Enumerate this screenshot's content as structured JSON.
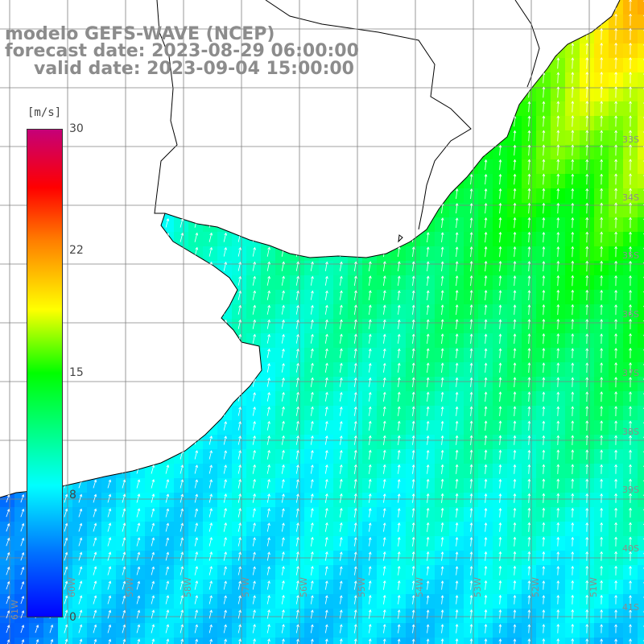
{
  "header": {
    "line1": "modelo GEFS-WAVE (NCEP)",
    "line2": "forecast date: 2023-08-29 06:00:00",
    "line3": "valid date: 2023-09-04 15:00:00"
  },
  "colorbar": {
    "unit": "[m/s]",
    "min": 0,
    "max": 30,
    "ticks": [
      "30",
      "22",
      "15",
      "8",
      "0"
    ],
    "tick_values": [
      30,
      22,
      15,
      8,
      0
    ]
  },
  "lat_labels": [
    "33S",
    "34S",
    "35S",
    "36S",
    "37S",
    "38S",
    "39S",
    "40S",
    "41S"
  ],
  "lon_labels": [
    "61W",
    "60W",
    "59W",
    "58W",
    "57W",
    "56W",
    "55W",
    "54W",
    "53W",
    "52W",
    "51W"
  ],
  "colors": {
    "land": "#ffffff",
    "coastline": "#000000",
    "grid": "#808080",
    "arrow": "#ffffff",
    "title": "#8c8c8c"
  },
  "map": {
    "variable": "wind speed",
    "units": "m/s",
    "arrow_direction": "mostly toward north-northeast"
  }
}
